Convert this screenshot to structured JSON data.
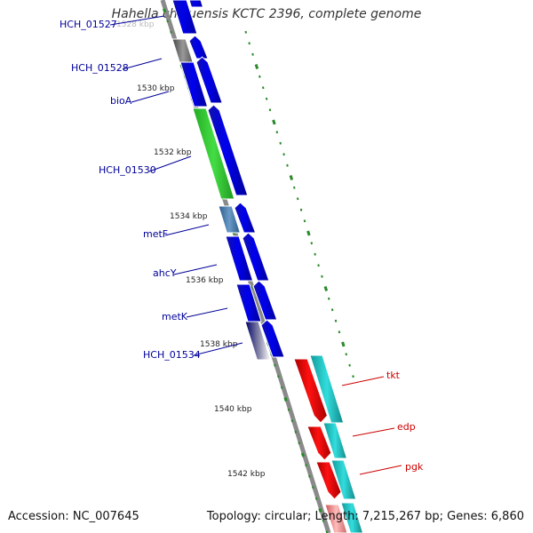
{
  "title": "Hahella chejuensis KCTC 2396, complete genome",
  "accession_label": "Accession: NC_007645",
  "summary_label": "Topology: circular; Length: 7,215,267 bp; Genes: 6,860",
  "colors": {
    "backbone": "#8a8a8a",
    "forward": "#0000ee",
    "feature_green": "#33cc33",
    "feature_red": "#ee0000",
    "feature_cyan": "#22cccc",
    "tick": "#2a8a2a",
    "left_label": "#000099",
    "right_label": "#cc0000"
  },
  "scale_labels": [
    "1528 kbp",
    "1530 kbp",
    "1532 kbp",
    "1534 kbp",
    "1536 kbp",
    "1538 kbp",
    "1540 kbp",
    "1542 kbp"
  ],
  "left_genes": [
    "HCH_01527",
    "HCH_01528",
    "bioA",
    "HCH_01530",
    "metF",
    "ahcY",
    "metK",
    "HCH_01534"
  ],
  "right_genes": [
    "tkt",
    "edp",
    "pgk"
  ]
}
